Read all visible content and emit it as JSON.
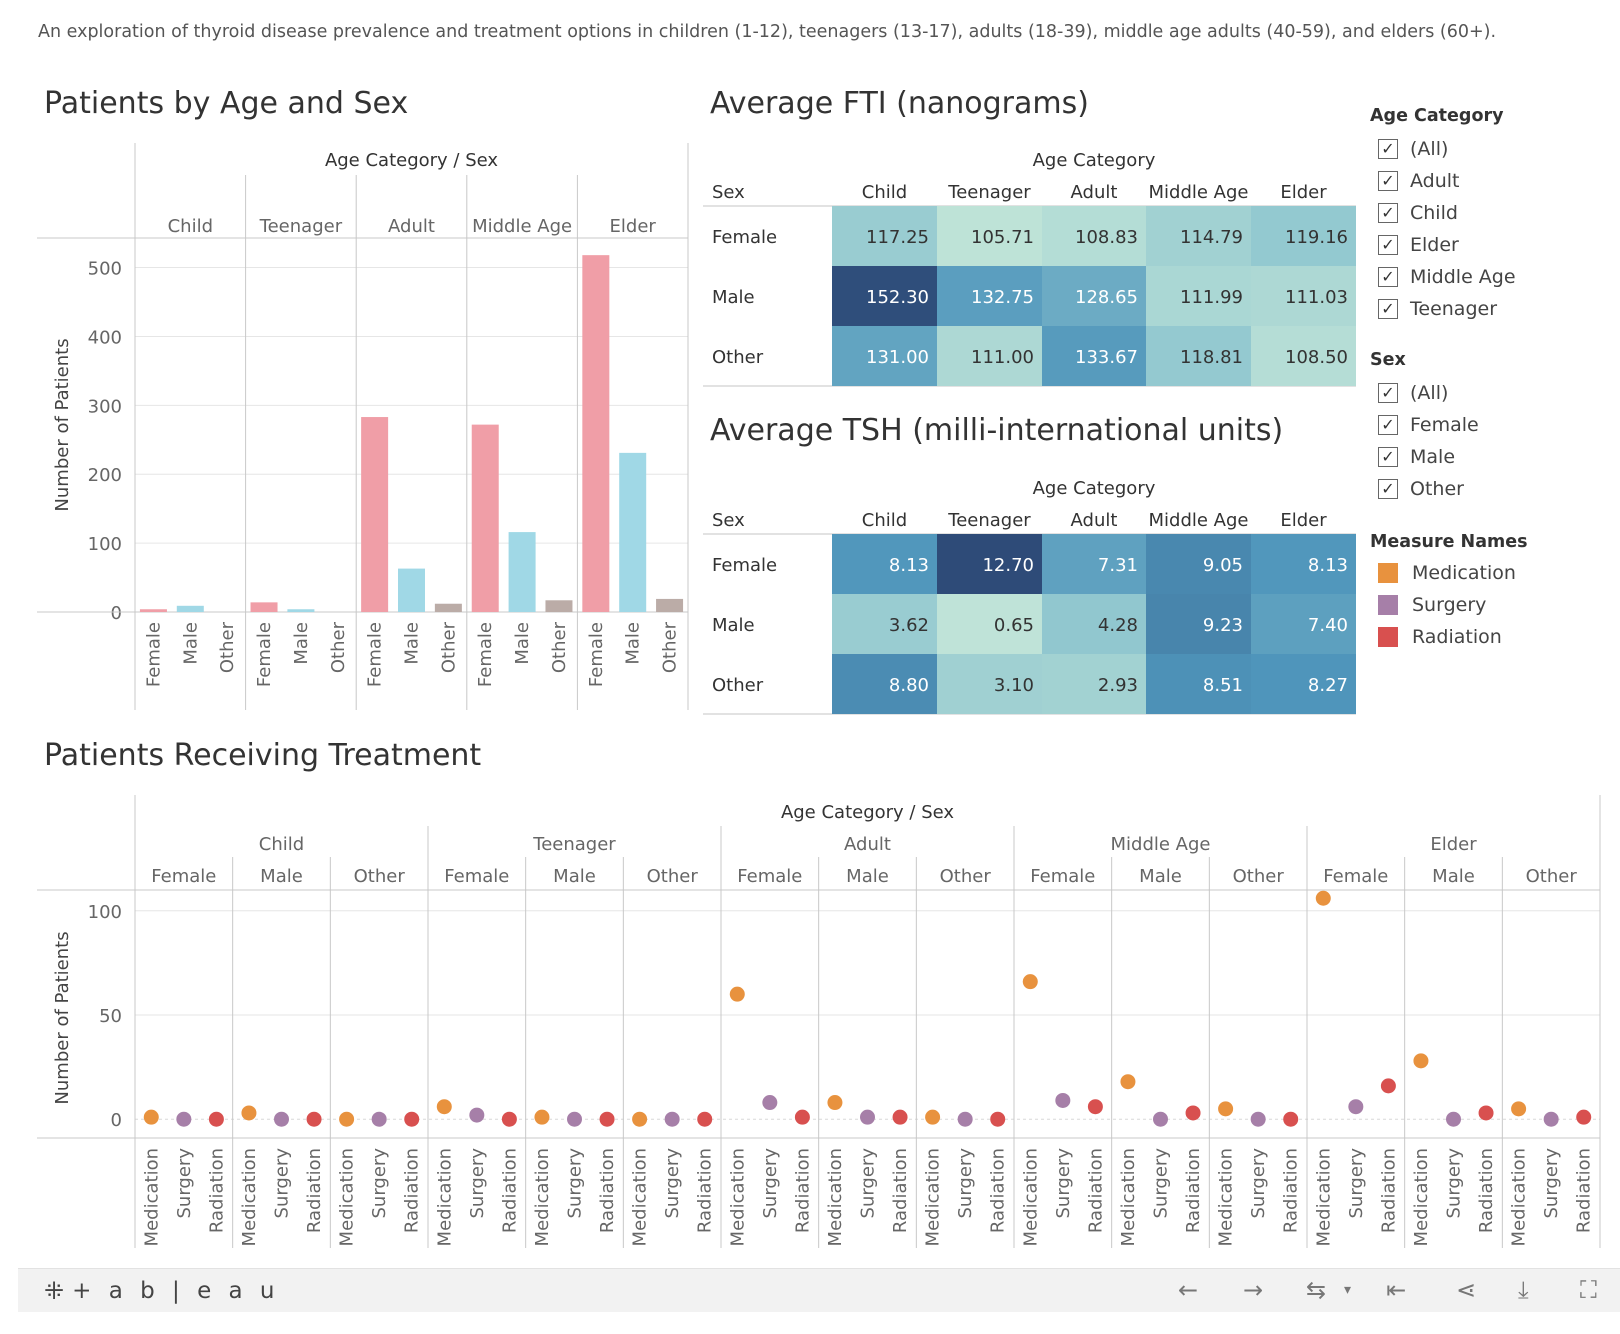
{
  "description": "An exploration of thyroid disease prevalence and treatment options in children (1-12), teenagers (13-17), adults (18-39), middle age adults (40-59), and elders (60+).",
  "age_categories": [
    "Child",
    "Teenager",
    "Adult",
    "Middle Age",
    "Elder"
  ],
  "sexes": [
    "Female",
    "Male",
    "Other"
  ],
  "colors": {
    "female": "#f09ea7",
    "male": "#a0d8e6",
    "other": "#bbaca7",
    "medication": "#e8923e",
    "surgery": "#a67fa8",
    "radiation": "#d8504f",
    "grid": "#e6e6e6",
    "axis": "#c8c8c8"
  },
  "legends": {
    "age_category": {
      "title": "Age Category",
      "items": [
        "(All)",
        "Adult",
        "Child",
        "Elder",
        "Middle Age",
        "Teenager"
      ],
      "check": "✓"
    },
    "sex": {
      "title": "Sex",
      "items": [
        "(All)",
        "Female",
        "Male",
        "Other"
      ],
      "check": "✓"
    },
    "measure_names": {
      "title": "Measure Names",
      "items": [
        {
          "label": "Medication",
          "color": "#e8923e"
        },
        {
          "label": "Surgery",
          "color": "#a67fa8"
        },
        {
          "label": "Radiation",
          "color": "#d8504f"
        }
      ]
    }
  },
  "toolbar": {
    "logo": "+ a b | e a u",
    "logo_mark": "⁜",
    "back": "←",
    "forward": "→",
    "redo": "⇆",
    "redo_menu": "▾",
    "revert": "⇤",
    "share": "⋖",
    "download": "⤓",
    "fullscreen": "⛶"
  },
  "chart_data": [
    {
      "type": "bar",
      "title": "Patients by Age and Sex",
      "header": "Age Category / Sex",
      "ylabel": "Number of Patients",
      "ylim": [
        0,
        540
      ],
      "yticks": [
        0,
        100,
        200,
        300,
        400,
        500
      ],
      "groups": [
        {
          "category": "Child",
          "values": [
            {
              "sex": "Female",
              "value": 4
            },
            {
              "sex": "Male",
              "value": 9
            },
            {
              "sex": "Other",
              "value": 0
            }
          ]
        },
        {
          "category": "Teenager",
          "values": [
            {
              "sex": "Female",
              "value": 14
            },
            {
              "sex": "Male",
              "value": 4
            },
            {
              "sex": "Other",
              "value": 0
            }
          ]
        },
        {
          "category": "Adult",
          "values": [
            {
              "sex": "Female",
              "value": 283
            },
            {
              "sex": "Male",
              "value": 63
            },
            {
              "sex": "Other",
              "value": 12
            }
          ]
        },
        {
          "category": "Middle Age",
          "values": [
            {
              "sex": "Female",
              "value": 272
            },
            {
              "sex": "Male",
              "value": 116
            },
            {
              "sex": "Other",
              "value": 17
            }
          ]
        },
        {
          "category": "Elder",
          "values": [
            {
              "sex": "Female",
              "value": 518
            },
            {
              "sex": "Male",
              "value": 231
            },
            {
              "sex": "Other",
              "value": 19
            }
          ]
        }
      ]
    },
    {
      "type": "heatmap",
      "title": "Average FTI (nanograms)",
      "column_header": "Age Category",
      "row_header": "Sex",
      "columns": [
        "Child",
        "Teenager",
        "Adult",
        "Middle Age",
        "Elder"
      ],
      "rows": [
        {
          "label": "Female",
          "values": [
            "117.25",
            "105.71",
            "108.83",
            "114.79",
            "119.16"
          ]
        },
        {
          "label": "Male",
          "values": [
            "152.30",
            "132.75",
            "128.65",
            "111.99",
            "111.03"
          ]
        },
        {
          "label": "Other",
          "values": [
            "131.00",
            "111.00",
            "133.67",
            "118.81",
            "108.50"
          ]
        }
      ]
    },
    {
      "type": "heatmap",
      "title": "Average TSH (milli-international units)",
      "column_header": "Age Category",
      "row_header": "Sex",
      "columns": [
        "Child",
        "Teenager",
        "Adult",
        "Middle Age",
        "Elder"
      ],
      "rows": [
        {
          "label": "Female",
          "values": [
            "8.13",
            "12.70",
            "7.31",
            "9.05",
            "8.13"
          ]
        },
        {
          "label": "Male",
          "values": [
            "3.62",
            "0.65",
            "4.28",
            "9.23",
            "7.40"
          ]
        },
        {
          "label": "Other",
          "values": [
            "8.80",
            "3.10",
            "2.93",
            "8.51",
            "8.27"
          ]
        }
      ]
    },
    {
      "type": "scatter",
      "title": "Patients Receiving Treatment",
      "header": "Age Category / Sex",
      "ylabel": "Number of Patients",
      "ylim": [
        -9,
        109
      ],
      "yticks": [
        0,
        50,
        100
      ],
      "measures": [
        "Medication",
        "Surgery",
        "Radiation"
      ],
      "groups": [
        {
          "category": "Child",
          "sexes": [
            {
              "sex": "Female",
              "values": [
                1,
                0,
                0
              ]
            },
            {
              "sex": "Male",
              "values": [
                3,
                0,
                0
              ]
            },
            {
              "sex": "Other",
              "values": [
                0,
                0,
                0
              ]
            }
          ]
        },
        {
          "category": "Teenager",
          "sexes": [
            {
              "sex": "Female",
              "values": [
                6,
                2,
                0
              ]
            },
            {
              "sex": "Male",
              "values": [
                1,
                0,
                0
              ]
            },
            {
              "sex": "Other",
              "values": [
                0,
                0,
                0
              ]
            }
          ]
        },
        {
          "category": "Adult",
          "sexes": [
            {
              "sex": "Female",
              "values": [
                60,
                8,
                1
              ]
            },
            {
              "sex": "Male",
              "values": [
                8,
                1,
                1
              ]
            },
            {
              "sex": "Other",
              "values": [
                1,
                0,
                0
              ]
            }
          ]
        },
        {
          "category": "Middle Age",
          "sexes": [
            {
              "sex": "Female",
              "values": [
                66,
                9,
                6
              ]
            },
            {
              "sex": "Male",
              "values": [
                18,
                0,
                3
              ]
            },
            {
              "sex": "Other",
              "values": [
                5,
                0,
                0
              ]
            }
          ]
        },
        {
          "category": "Elder",
          "sexes": [
            {
              "sex": "Female",
              "values": [
                106,
                6,
                16
              ]
            },
            {
              "sex": "Male",
              "values": [
                28,
                0,
                3
              ]
            },
            {
              "sex": "Other",
              "values": [
                5,
                0,
                1
              ]
            }
          ]
        }
      ]
    }
  ]
}
